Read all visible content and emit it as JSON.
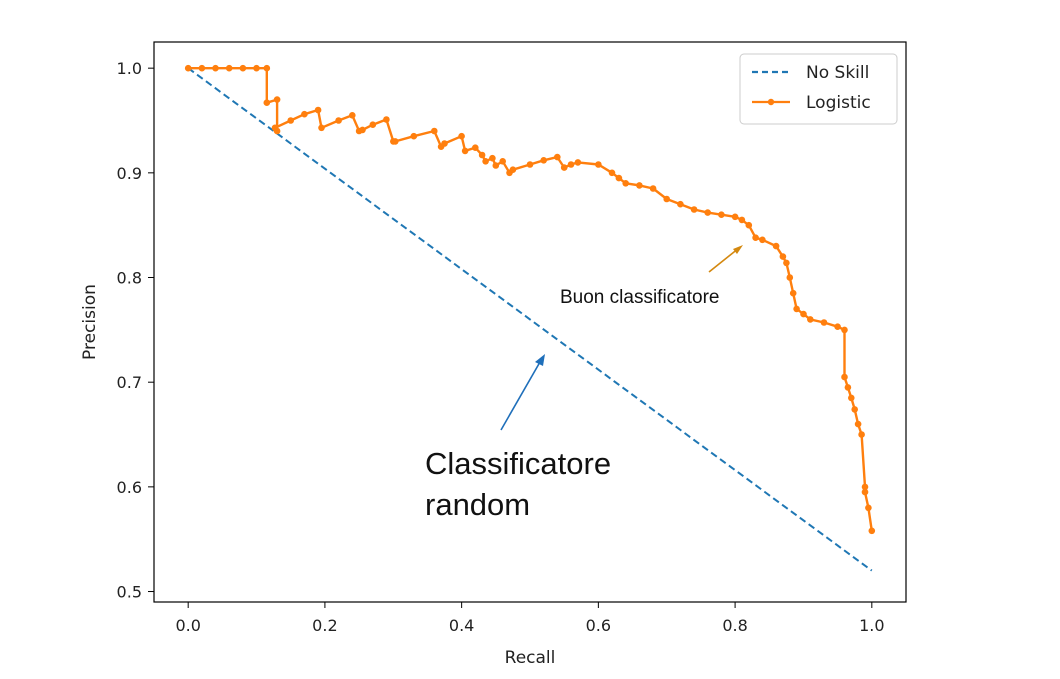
{
  "chart_data": {
    "type": "line",
    "xlabel": "Recall",
    "ylabel": "Precision",
    "xlim": [
      -0.05,
      1.05
    ],
    "ylim": [
      0.49,
      1.025
    ],
    "x_ticks": [
      "0.0",
      "0.2",
      "0.4",
      "0.6",
      "0.8",
      "1.0"
    ],
    "y_ticks": [
      "0.5",
      "0.6",
      "0.7",
      "0.8",
      "0.9",
      "1.0"
    ],
    "legend_position": "top-right",
    "series": [
      {
        "name": "No Skill",
        "style": "dashed",
        "color": "#1f77b4",
        "x": [
          0.0,
          1.0
        ],
        "y": [
          1.0,
          0.52
        ]
      },
      {
        "name": "Logistic",
        "style": "solid-markers",
        "color": "#ff7f0e",
        "x": [
          0.0,
          0.02,
          0.04,
          0.06,
          0.08,
          0.1,
          0.115,
          0.115,
          0.13,
          0.13,
          0.127,
          0.15,
          0.17,
          0.19,
          0.195,
          0.22,
          0.24,
          0.25,
          0.255,
          0.27,
          0.29,
          0.3,
          0.303,
          0.33,
          0.36,
          0.37,
          0.375,
          0.4,
          0.405,
          0.42,
          0.43,
          0.435,
          0.445,
          0.45,
          0.46,
          0.47,
          0.475,
          0.5,
          0.52,
          0.54,
          0.55,
          0.56,
          0.57,
          0.6,
          0.62,
          0.63,
          0.64,
          0.66,
          0.68,
          0.7,
          0.72,
          0.74,
          0.76,
          0.78,
          0.8,
          0.81,
          0.82,
          0.83,
          0.84,
          0.86,
          0.87,
          0.875,
          0.88,
          0.885,
          0.89,
          0.9,
          0.91,
          0.93,
          0.95,
          0.96,
          0.96,
          0.965,
          0.97,
          0.975,
          0.98,
          0.985,
          0.99,
          0.99,
          0.995,
          1.0
        ],
        "y": [
          1.0,
          1.0,
          1.0,
          1.0,
          1.0,
          1.0,
          1.0,
          0.967,
          0.97,
          0.94,
          0.943,
          0.95,
          0.956,
          0.96,
          0.943,
          0.95,
          0.955,
          0.94,
          0.941,
          0.946,
          0.951,
          0.93,
          0.93,
          0.935,
          0.94,
          0.925,
          0.928,
          0.935,
          0.921,
          0.924,
          0.917,
          0.911,
          0.914,
          0.907,
          0.911,
          0.9,
          0.903,
          0.908,
          0.912,
          0.915,
          0.905,
          0.908,
          0.91,
          0.908,
          0.9,
          0.895,
          0.89,
          0.888,
          0.885,
          0.875,
          0.87,
          0.865,
          0.862,
          0.86,
          0.858,
          0.855,
          0.85,
          0.838,
          0.836,
          0.83,
          0.82,
          0.814,
          0.8,
          0.785,
          0.77,
          0.765,
          0.76,
          0.757,
          0.753,
          0.75,
          0.705,
          0.695,
          0.685,
          0.674,
          0.66,
          0.65,
          0.6,
          0.595,
          0.58,
          0.558
        ]
      }
    ]
  },
  "annotations": {
    "good": "Buon classificatore",
    "random_line1": "Classificatore",
    "random_line2": "random"
  }
}
